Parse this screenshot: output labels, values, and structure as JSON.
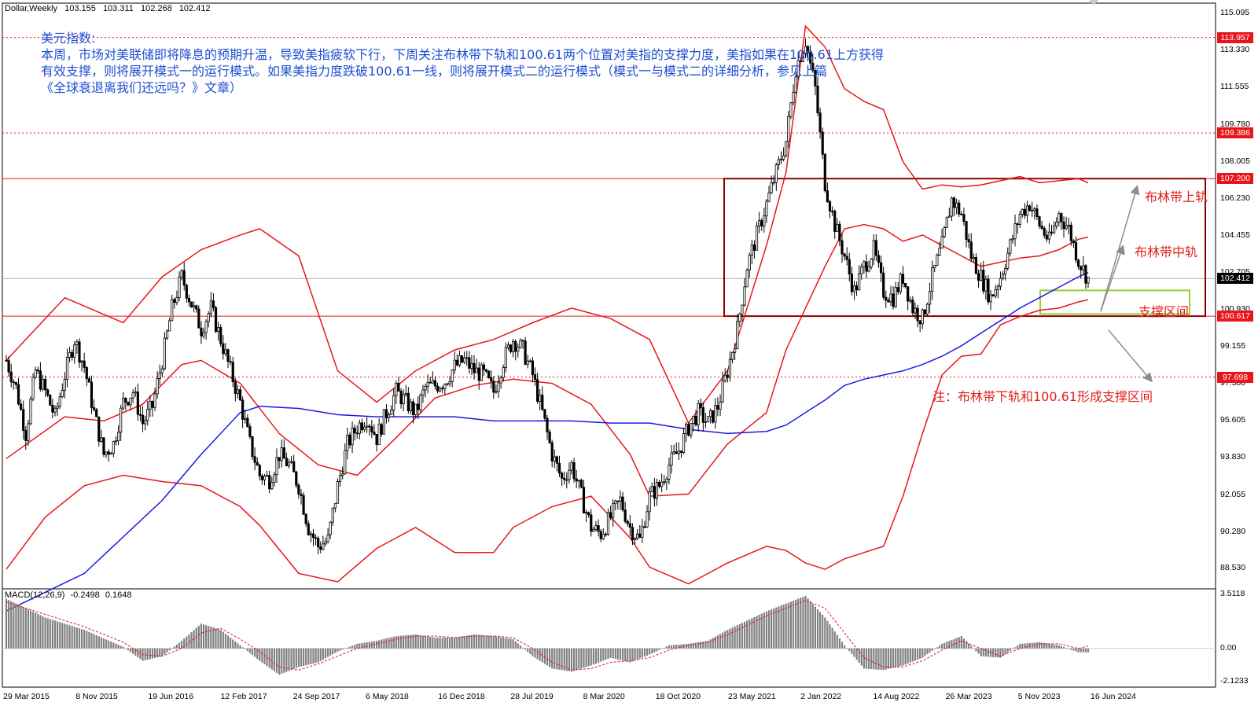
{
  "header": {
    "symbol": "Dollar,Weekly",
    "open": "103.155",
    "high": "103.311",
    "low": "102.268",
    "close": "102.412"
  },
  "annotation": {
    "title": "美元指数:",
    "line1": "本周，市场对美联储即将降息的预期升温，导致美指疲软下行，下周关注布林带下轨和100.61两个位置对美指的支撑力度，美指如果在100.61上方获得",
    "line2": "有效支撑，则将展开模式一的运行模式。如果美指力度跌破100.61一线，则将展开模式二的运行模式（模式一与模式二的详细分析，参见上篇",
    "line3": "《全球衰退离我们还远吗？》文章）"
  },
  "labels": {
    "upper_band": "布林带上轨",
    "middle_band": "布林带中轨",
    "support_zone": "支撑区间",
    "note": "注：布林带下轨和100.61形成支撑区间"
  },
  "macd_header": {
    "name": "MACD(12,26,9)",
    "macd": "-0.2498",
    "signal": "0.1648"
  },
  "colors": {
    "bollinger": "#e8161a",
    "ma": "#1a1ae6",
    "candles": "#000000",
    "box": "#8b0000",
    "support_box": "#9acd32",
    "arrow": "#8c8c8c",
    "current_price_box": "#000000",
    "level_box": "#e8161a",
    "text_annotation": "#1f4fd1"
  },
  "chart_data": {
    "type": "candlestick",
    "timeframe": "Weekly",
    "y_axis_ticks": [
      "115.095",
      "113.330",
      "111.555",
      "109.780",
      "108.005",
      "106.230",
      "104.455",
      "102.705",
      "100.930",
      "99.155",
      "97.380",
      "95.605",
      "93.830",
      "92.055",
      "90.280",
      "88.530"
    ],
    "ylim": [
      87.6,
      115.6
    ],
    "x_axis_ticks": [
      "29 Mar 2015",
      "8 Nov 2015",
      "19 Jun 2016",
      "12 Feb 2017",
      "24 Sep 2017",
      "6 May 2018",
      "16 Dec 2018",
      "28 Jul 2019",
      "8 Mar 2020",
      "18 Oct 2020",
      "23 May 2021",
      "2 Jan 2022",
      "14 Aug 2022",
      "26 Mar 2023",
      "5 Nov 2023",
      "16 Jun 2024"
    ],
    "levels": [
      {
        "value": 113.957,
        "label": "113.957",
        "style": "dotted"
      },
      {
        "value": 109.386,
        "label": "109.386",
        "style": "dotted"
      },
      {
        "value": 107.2,
        "label": "107.200",
        "style": "solid"
      },
      {
        "value": 100.617,
        "label": "100.617",
        "style": "solid"
      },
      {
        "value": 97.698,
        "label": "97.698",
        "style": "dotted"
      }
    ],
    "current_price": {
      "value": 102.412,
      "label": "102.412"
    },
    "close_path": [
      [
        0,
        98.5
      ],
      [
        1,
        97.2
      ],
      [
        2,
        95.0
      ],
      [
        3,
        98.0
      ],
      [
        4,
        97.0
      ],
      [
        5,
        95.8
      ],
      [
        6,
        97.8
      ],
      [
        7,
        99.5
      ],
      [
        8,
        98.2
      ],
      [
        9,
        96.0
      ],
      [
        10,
        94.0
      ],
      [
        11,
        94.5
      ],
      [
        12,
        96.5
      ],
      [
        13,
        97.0
      ],
      [
        14,
        95.5
      ],
      [
        15,
        96.3
      ],
      [
        16,
        98.5
      ],
      [
        17,
        101.0
      ],
      [
        18,
        102.5
      ],
      [
        19,
        101.2
      ],
      [
        20,
        100.0
      ],
      [
        21,
        101.0
      ],
      [
        22,
        99.5
      ],
      [
        23,
        98.0
      ],
      [
        24,
        96.5
      ],
      [
        25,
        94.5
      ],
      [
        26,
        93.0
      ],
      [
        27,
        92.8
      ],
      [
        28,
        94.0
      ],
      [
        29,
        93.5
      ],
      [
        30,
        92.5
      ],
      [
        31,
        90.5
      ],
      [
        32,
        89.6
      ],
      [
        33,
        89.9
      ],
      [
        34,
        92.5
      ],
      [
        35,
        94.5
      ],
      [
        36,
        95.3
      ],
      [
        37,
        95.8
      ],
      [
        38,
        94.8
      ],
      [
        39,
        96.0
      ],
      [
        40,
        97.0
      ],
      [
        41,
        96.5
      ],
      [
        42,
        96.0
      ],
      [
        43,
        97.2
      ],
      [
        44,
        97.3
      ],
      [
        45,
        97.5
      ],
      [
        46,
        98.2
      ],
      [
        47,
        98.5
      ],
      [
        48,
        98.0
      ],
      [
        49,
        97.8
      ],
      [
        50,
        97.0
      ],
      [
        51,
        98.5
      ],
      [
        52,
        99.5
      ],
      [
        53,
        99.0
      ],
      [
        54,
        97.8
      ],
      [
        55,
        96.0
      ],
      [
        56,
        94.0
      ],
      [
        57,
        92.8
      ],
      [
        58,
        93.5
      ],
      [
        59,
        92.0
      ],
      [
        60,
        90.5
      ],
      [
        61,
        90.2
      ],
      [
        62,
        91.0
      ],
      [
        63,
        91.8
      ],
      [
        64,
        90.5
      ],
      [
        65,
        89.9
      ],
      [
        66,
        92.0
      ],
      [
        67,
        92.5
      ],
      [
        68,
        93.5
      ],
      [
        69,
        94.2
      ],
      [
        70,
        95.3
      ],
      [
        71,
        96.0
      ],
      [
        72,
        95.5
      ],
      [
        73,
        96.3
      ],
      [
        74,
        98.0
      ],
      [
        75,
        100.0
      ],
      [
        76,
        103.0
      ],
      [
        77,
        104.5
      ],
      [
        78,
        106.0
      ],
      [
        79,
        107.5
      ],
      [
        80,
        109.0
      ],
      [
        81,
        112.5
      ],
      [
        82,
        113.8
      ],
      [
        83,
        111.5
      ],
      [
        84,
        107.0
      ],
      [
        85,
        105.0
      ],
      [
        86,
        103.5
      ],
      [
        87,
        101.8
      ],
      [
        88,
        103.0
      ],
      [
        89,
        103.8
      ],
      [
        90,
        101.8
      ],
      [
        91,
        101.5
      ],
      [
        92,
        102.5
      ],
      [
        93,
        101.0
      ],
      [
        94,
        100.5
      ],
      [
        95,
        102.5
      ],
      [
        96,
        104.0
      ],
      [
        97,
        106.2
      ],
      [
        98,
        105.5
      ],
      [
        99,
        103.5
      ],
      [
        100,
        102.5
      ],
      [
        101,
        101.5
      ],
      [
        102,
        102.5
      ],
      [
        103,
        104.0
      ],
      [
        104,
        105.5
      ],
      [
        105,
        106.0
      ],
      [
        106,
        105.0
      ],
      [
        107,
        104.2
      ],
      [
        108,
        105.5
      ],
      [
        109,
        104.8
      ],
      [
        110,
        103.3
      ],
      [
        111,
        102.4
      ]
    ],
    "bollinger_upper": [
      [
        0,
        98.5
      ],
      [
        6,
        101.5
      ],
      [
        12,
        100.3
      ],
      [
        16,
        102.5
      ],
      [
        20,
        103.8
      ],
      [
        24,
        104.5
      ],
      [
        26,
        104.8
      ],
      [
        30,
        103.5
      ],
      [
        34,
        98.0
      ],
      [
        38,
        96.5
      ],
      [
        42,
        98.0
      ],
      [
        46,
        99.0
      ],
      [
        50,
        99.5
      ],
      [
        54,
        100.3
      ],
      [
        58,
        101.0
      ],
      [
        62,
        100.5
      ],
      [
        66,
        99.5
      ],
      [
        70,
        95.5
      ],
      [
        74,
        98.0
      ],
      [
        78,
        104.0
      ],
      [
        80,
        107.5
      ],
      [
        82,
        114.5
      ],
      [
        84,
        113.5
      ],
      [
        86,
        111.5
      ],
      [
        88,
        110.9
      ],
      [
        90,
        110.5
      ],
      [
        92,
        108.0
      ],
      [
        94,
        106.7
      ],
      [
        96,
        106.9
      ],
      [
        98,
        106.8
      ],
      [
        100,
        106.9
      ],
      [
        102,
        107.1
      ],
      [
        104,
        107.3
      ],
      [
        106,
        107.0
      ],
      [
        108,
        107.1
      ],
      [
        110,
        107.2
      ],
      [
        111,
        107.0
      ]
    ],
    "bollinger_middle": [
      [
        0,
        93.8
      ],
      [
        6,
        95.8
      ],
      [
        10,
        95.6
      ],
      [
        14,
        96.4
      ],
      [
        18,
        98.3
      ],
      [
        20,
        98.5
      ],
      [
        24,
        97.4
      ],
      [
        28,
        95.0
      ],
      [
        32,
        93.5
      ],
      [
        36,
        93.0
      ],
      [
        40,
        94.8
      ],
      [
        44,
        96.7
      ],
      [
        48,
        97.3
      ],
      [
        52,
        97.6
      ],
      [
        56,
        97.4
      ],
      [
        60,
        96.4
      ],
      [
        64,
        94.0
      ],
      [
        66,
        92.0
      ],
      [
        70,
        92.1
      ],
      [
        74,
        94.5
      ],
      [
        78,
        96.0
      ],
      [
        80,
        99.0
      ],
      [
        82,
        101.0
      ],
      [
        84,
        103.0
      ],
      [
        86,
        104.8
      ],
      [
        88,
        105.0
      ],
      [
        90,
        104.8
      ],
      [
        92,
        104.2
      ],
      [
        94,
        104.5
      ],
      [
        96,
        104.0
      ],
      [
        98,
        103.5
      ],
      [
        100,
        103.0
      ],
      [
        102,
        103.2
      ],
      [
        104,
        103.4
      ],
      [
        106,
        103.5
      ],
      [
        108,
        103.8
      ],
      [
        110,
        104.3
      ],
      [
        111,
        104.4
      ]
    ],
    "bollinger_lower": [
      [
        0,
        88.5
      ],
      [
        4,
        91.0
      ],
      [
        8,
        92.5
      ],
      [
        12,
        93.0
      ],
      [
        16,
        92.7
      ],
      [
        20,
        92.5
      ],
      [
        24,
        91.5
      ],
      [
        26,
        90.6
      ],
      [
        30,
        88.3
      ],
      [
        34,
        87.9
      ],
      [
        38,
        89.5
      ],
      [
        42,
        90.5
      ],
      [
        46,
        89.3
      ],
      [
        50,
        89.3
      ],
      [
        52,
        90.5
      ],
      [
        56,
        91.5
      ],
      [
        60,
        92.0
      ],
      [
        64,
        90.0
      ],
      [
        66,
        88.6
      ],
      [
        70,
        87.8
      ],
      [
        74,
        88.8
      ],
      [
        78,
        89.6
      ],
      [
        80,
        89.4
      ],
      [
        82,
        88.8
      ],
      [
        84,
        88.5
      ],
      [
        86,
        89.0
      ],
      [
        88,
        89.3
      ],
      [
        90,
        89.6
      ],
      [
        92,
        92.0
      ],
      [
        94,
        95.0
      ],
      [
        96,
        97.8
      ],
      [
        98,
        98.7
      ],
      [
        100,
        98.8
      ],
      [
        102,
        100.2
      ],
      [
        104,
        100.6
      ],
      [
        106,
        100.9
      ],
      [
        108,
        101.0
      ],
      [
        110,
        101.3
      ],
      [
        111,
        101.4
      ]
    ],
    "moving_average": [
      [
        0,
        86.5
      ],
      [
        8,
        88.3
      ],
      [
        16,
        91.8
      ],
      [
        20,
        94.0
      ],
      [
        24,
        96.0
      ],
      [
        26,
        96.3
      ],
      [
        30,
        96.2
      ],
      [
        34,
        95.9
      ],
      [
        38,
        95.8
      ],
      [
        42,
        95.8
      ],
      [
        46,
        95.8
      ],
      [
        50,
        95.6
      ],
      [
        54,
        95.6
      ],
      [
        58,
        95.6
      ],
      [
        62,
        95.5
      ],
      [
        66,
        95.5
      ],
      [
        70,
        95.2
      ],
      [
        74,
        95.0
      ],
      [
        78,
        95.1
      ],
      [
        80,
        95.4
      ],
      [
        82,
        96.0
      ],
      [
        84,
        96.6
      ],
      [
        86,
        97.3
      ],
      [
        88,
        97.6
      ],
      [
        90,
        97.8
      ],
      [
        92,
        98.0
      ],
      [
        94,
        98.3
      ],
      [
        96,
        98.7
      ],
      [
        98,
        99.2
      ],
      [
        100,
        99.8
      ],
      [
        102,
        100.4
      ],
      [
        104,
        101.0
      ],
      [
        106,
        101.5
      ],
      [
        108,
        102.0
      ],
      [
        110,
        102.5
      ],
      [
        111,
        102.7
      ]
    ],
    "macd": {
      "y_axis_ticks": [
        "3.5118",
        "0.00",
        "-2.1233"
      ],
      "ylim": [
        -2.5,
        3.8
      ],
      "histogram": [
        [
          0,
          3.2
        ],
        [
          4,
          2.0
        ],
        [
          8,
          1.2
        ],
        [
          12,
          0.1
        ],
        [
          14,
          -0.8
        ],
        [
          16,
          -0.5
        ],
        [
          18,
          0.5
        ],
        [
          20,
          1.6
        ],
        [
          22,
          1.2
        ],
        [
          24,
          0.2
        ],
        [
          26,
          -0.8
        ],
        [
          28,
          -1.7
        ],
        [
          30,
          -1.2
        ],
        [
          32,
          -0.9
        ],
        [
          34,
          -0.2
        ],
        [
          36,
          0.3
        ],
        [
          38,
          0.5
        ],
        [
          40,
          0.8
        ],
        [
          42,
          0.9
        ],
        [
          44,
          0.7
        ],
        [
          46,
          0.7
        ],
        [
          48,
          0.9
        ],
        [
          50,
          0.8
        ],
        [
          52,
          0.6
        ],
        [
          54,
          -0.5
        ],
        [
          56,
          -1.3
        ],
        [
          58,
          -1.5
        ],
        [
          60,
          -1.1
        ],
        [
          62,
          -0.6
        ],
        [
          64,
          -0.9
        ],
        [
          66,
          -0.4
        ],
        [
          68,
          0.2
        ],
        [
          70,
          0.3
        ],
        [
          72,
          0.5
        ],
        [
          74,
          1.2
        ],
        [
          76,
          1.8
        ],
        [
          78,
          2.4
        ],
        [
          80,
          2.9
        ],
        [
          82,
          3.4
        ],
        [
          84,
          2.0
        ],
        [
          86,
          0.2
        ],
        [
          88,
          -1.3
        ],
        [
          90,
          -1.4
        ],
        [
          92,
          -1.1
        ],
        [
          94,
          -0.6
        ],
        [
          96,
          0.3
        ],
        [
          98,
          0.8
        ],
        [
          100,
          -0.5
        ],
        [
          102,
          -0.6
        ],
        [
          104,
          0.3
        ],
        [
          106,
          0.4
        ],
        [
          108,
          0.2
        ],
        [
          110,
          -0.25
        ],
        [
          111,
          -0.25
        ]
      ],
      "signal": [
        [
          0,
          3.0
        ],
        [
          4,
          2.2
        ],
        [
          8,
          1.4
        ],
        [
          12,
          0.4
        ],
        [
          14,
          -0.4
        ],
        [
          16,
          -0.5
        ],
        [
          18,
          0.0
        ],
        [
          20,
          1.0
        ],
        [
          22,
          1.3
        ],
        [
          24,
          0.6
        ],
        [
          26,
          -0.2
        ],
        [
          28,
          -1.2
        ],
        [
          30,
          -1.4
        ],
        [
          32,
          -1.0
        ],
        [
          34,
          -0.5
        ],
        [
          36,
          0.0
        ],
        [
          38,
          0.3
        ],
        [
          40,
          0.6
        ],
        [
          42,
          0.8
        ],
        [
          44,
          0.8
        ],
        [
          46,
          0.7
        ],
        [
          48,
          0.8
        ],
        [
          50,
          0.8
        ],
        [
          52,
          0.7
        ],
        [
          54,
          0.0
        ],
        [
          56,
          -0.9
        ],
        [
          58,
          -1.4
        ],
        [
          60,
          -1.3
        ],
        [
          62,
          -0.9
        ],
        [
          64,
          -0.8
        ],
        [
          66,
          -0.6
        ],
        [
          68,
          -0.1
        ],
        [
          70,
          0.2
        ],
        [
          72,
          0.4
        ],
        [
          74,
          0.9
        ],
        [
          76,
          1.5
        ],
        [
          78,
          2.1
        ],
        [
          80,
          2.6
        ],
        [
          82,
          3.1
        ],
        [
          84,
          2.6
        ],
        [
          86,
          1.0
        ],
        [
          88,
          -0.6
        ],
        [
          90,
          -1.2
        ],
        [
          92,
          -1.2
        ],
        [
          94,
          -0.8
        ],
        [
          96,
          -0.1
        ],
        [
          98,
          0.5
        ],
        [
          100,
          0.0
        ],
        [
          102,
          -0.5
        ],
        [
          104,
          0.0
        ],
        [
          106,
          0.3
        ],
        [
          108,
          0.3
        ],
        [
          110,
          0.0
        ],
        [
          111,
          0.16
        ]
      ]
    }
  }
}
